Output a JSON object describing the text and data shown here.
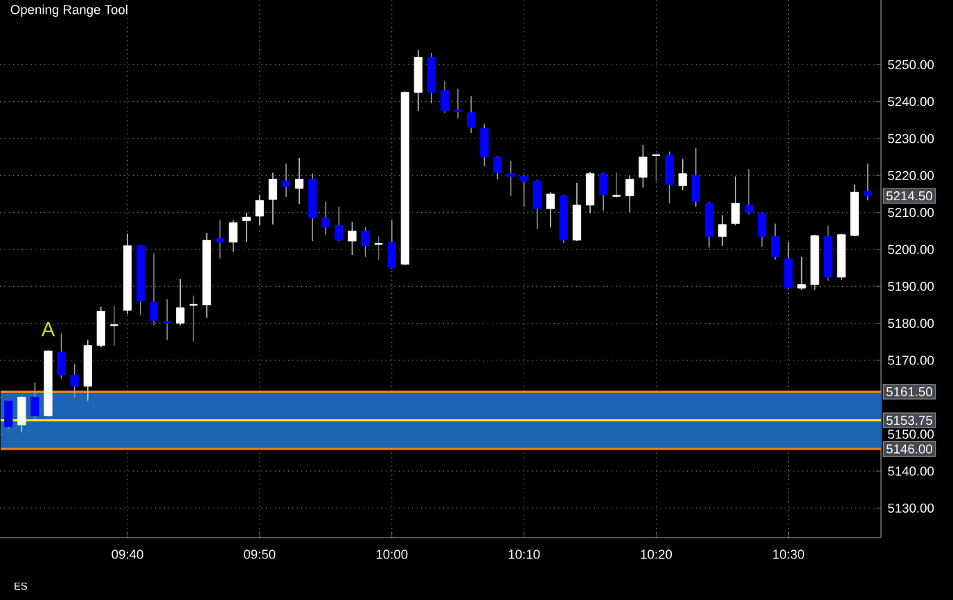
{
  "chart_data": {
    "type": "candlestick",
    "title": "Opening Range Tool",
    "x": [
      9.5167,
      9.5333,
      9.55,
      9.5667,
      9.5833,
      9.6,
      9.6167,
      9.6333,
      9.65,
      9.6667,
      9.6833,
      9.7,
      9.7167,
      9.7333,
      9.75,
      9.7667,
      9.7833,
      9.8,
      9.8167,
      9.8333,
      9.85,
      9.8667,
      9.8833,
      9.9,
      9.9167,
      9.9333,
      9.95,
      9.9667,
      9.9833,
      10,
      10.0167,
      10.0333,
      10.05,
      10.0667,
      10.0833,
      10.1,
      10.1167,
      10.1333,
      10.15,
      10.1667,
      10.1833,
      10.2,
      10.2167,
      10.2333,
      10.25,
      10.2667,
      10.2833,
      10.3,
      10.3167,
      10.3333,
      10.35,
      10.3667,
      10.3833,
      10.4,
      10.4167,
      10.4333,
      10.45,
      10.4667,
      10.4833,
      10.5,
      10.5167,
      10.5333,
      10.55,
      10.5667,
      10.5833,
      10.6
    ],
    "ohlc": [
      [
        5159,
        5159.25,
        5151.5,
        5152
      ],
      [
        5152.5,
        5160.25,
        5150.5,
        5160
      ],
      [
        5160,
        5164,
        5154.25,
        5155
      ],
      [
        5155,
        5172.75,
        5154.75,
        5172.5
      ],
      [
        5172.25,
        5177.25,
        5165,
        5166
      ],
      [
        5166,
        5169,
        5160,
        5163
      ],
      [
        5163,
        5175.5,
        5159,
        5174
      ],
      [
        5174,
        5184.5,
        5173.5,
        5183.25
      ],
      [
        5179.5,
        5184.75,
        5174,
        5179.5
      ],
      [
        5183.5,
        5204.25,
        5182.5,
        5201
      ],
      [
        5201,
        5201.25,
        5182.25,
        5186
      ],
      [
        5185.75,
        5199,
        5179.5,
        5180.75
      ],
      [
        5180.5,
        5186.5,
        5175.5,
        5180
      ],
      [
        5180,
        5192,
        5179.5,
        5184.25
      ],
      [
        5185,
        5187.5,
        5175,
        5185
      ],
      [
        5185,
        5204.5,
        5181.5,
        5202.5
      ],
      [
        5203,
        5208,
        5197.5,
        5202
      ],
      [
        5202,
        5208,
        5199.25,
        5207.25
      ],
      [
        5207.75,
        5210,
        5202,
        5208.75
      ],
      [
        5209,
        5214.75,
        5206.5,
        5213.25
      ],
      [
        5213.5,
        5220.75,
        5206.75,
        5219
      ],
      [
        5218.5,
        5223.25,
        5214.25,
        5217
      ],
      [
        5216.5,
        5224.75,
        5212.25,
        5219
      ],
      [
        5219,
        5220.5,
        5202.25,
        5208.5
      ],
      [
        5208.5,
        5213,
        5204,
        5206
      ],
      [
        5206.5,
        5211.5,
        5202.25,
        5202.5
      ],
      [
        5202.25,
        5207.5,
        5198.5,
        5205
      ],
      [
        5205,
        5206,
        5198,
        5201
      ],
      [
        5201.5,
        5203.5,
        5197.25,
        5201.5
      ],
      [
        5202,
        5208,
        5194.75,
        5195
      ],
      [
        5196,
        5242.75,
        5195.75,
        5242.5
      ],
      [
        5242.5,
        5254,
        5237.5,
        5252
      ],
      [
        5252,
        5253.25,
        5239.5,
        5242.5
      ],
      [
        5243,
        5245.5,
        5237,
        5237.5
      ],
      [
        5237.75,
        5243.5,
        5235.5,
        5237.25
      ],
      [
        5237,
        5241.5,
        5231.5,
        5233
      ],
      [
        5232.75,
        5234,
        5222.5,
        5225
      ],
      [
        5225,
        5225.25,
        5219,
        5220.75
      ],
      [
        5220.5,
        5224,
        5214.5,
        5219.75
      ],
      [
        5219.75,
        5220,
        5211.5,
        5218.5
      ],
      [
        5218.5,
        5218.75,
        5205.5,
        5211
      ],
      [
        5211,
        5215.5,
        5206,
        5215
      ],
      [
        5214.5,
        5214.75,
        5201.75,
        5202.5
      ],
      [
        5202.5,
        5218,
        5202.25,
        5212
      ],
      [
        5212,
        5221,
        5209.75,
        5220.5
      ],
      [
        5220.5,
        5220.75,
        5210.5,
        5214.75
      ],
      [
        5214.5,
        5220.75,
        5214,
        5214.5
      ],
      [
        5214.5,
        5220,
        5210,
        5219
      ],
      [
        5219.5,
        5228.25,
        5216.75,
        5225
      ],
      [
        5225.5,
        5226,
        5218.5,
        5225.5
      ],
      [
        5225.5,
        5226.5,
        5212.5,
        5217.5
      ],
      [
        5217.25,
        5224.5,
        5216,
        5220.5
      ],
      [
        5220,
        5227.5,
        5211.5,
        5213
      ],
      [
        5212.5,
        5212.75,
        5200.5,
        5203.5
      ],
      [
        5203.5,
        5209.25,
        5201,
        5206.75
      ],
      [
        5207,
        5219.75,
        5206.5,
        5212.5
      ],
      [
        5212,
        5221.75,
        5209.5,
        5210
      ],
      [
        5209.75,
        5210,
        5200.75,
        5203.5
      ],
      [
        5203.5,
        5207,
        5197.25,
        5198
      ],
      [
        5197.5,
        5202,
        5189.25,
        5189.5
      ],
      [
        5189.5,
        5198,
        5189,
        5190.5
      ],
      [
        5190.5,
        5204,
        5189,
        5203.75
      ],
      [
        5203.5,
        5206.5,
        5191.5,
        5192.5
      ],
      [
        5192.5,
        5204.25,
        5191.75,
        5204
      ],
      [
        5203.75,
        5217.5,
        5203.5,
        5215.5
      ],
      [
        5215.75,
        5223.25,
        5213.25,
        5214.5
      ]
    ],
    "xlim": [
      9.506,
      10.6167
    ],
    "ylim": [
      5122,
      5267.5
    ],
    "xticks": [
      {
        "value": 9.6667,
        "label": "09:40"
      },
      {
        "value": 9.8333,
        "label": "09:50"
      },
      {
        "value": 10,
        "label": "10:00"
      },
      {
        "value": 10.1667,
        "label": "10:10"
      },
      {
        "value": 10.3333,
        "label": "10:20"
      },
      {
        "value": 10.5,
        "label": "10:30"
      }
    ],
    "yticks": [
      {
        "value": 5130,
        "label": "5130.00"
      },
      {
        "value": 5140,
        "label": "5140.00"
      },
      {
        "value": 5150,
        "label": "5150.00"
      },
      {
        "value": 5160,
        "label": null
      },
      {
        "value": 5170,
        "label": "5170.00"
      },
      {
        "value": 5180,
        "label": "5180.00"
      },
      {
        "value": 5190,
        "label": "5190.00"
      },
      {
        "value": 5200,
        "label": "5200.00"
      },
      {
        "value": 5210,
        "label": "5210.00"
      },
      {
        "value": 5220,
        "label": "5220.00"
      },
      {
        "value": 5230,
        "label": "5230.00"
      },
      {
        "value": 5240,
        "label": "5240.00"
      },
      {
        "value": 5250,
        "label": "5250.00"
      }
    ],
    "grid": true,
    "bands": [
      {
        "axis": "y",
        "from": 5146,
        "to": 5161.5,
        "color": "#1e64b4"
      }
    ],
    "ref_lines": [
      {
        "axis": "y",
        "value": 5161.5,
        "label": "5161.50",
        "color": "#e8821e"
      },
      {
        "axis": "y",
        "value": 5153.75,
        "label": "5153.75",
        "color": "#f0e000"
      },
      {
        "axis": "y",
        "value": 5146,
        "label": "5146.00",
        "color": "#e8821e"
      }
    ],
    "annotations": [
      "A",
      {
        "text": "5214.50",
        "x": 10.6,
        "y": 5214.5
      },
      "ES"
    ]
  }
}
